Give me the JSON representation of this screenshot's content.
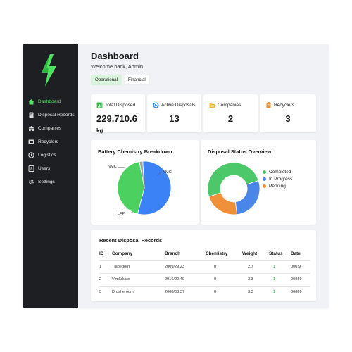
{
  "sidebar": {
    "items": [
      {
        "label": "Dashboard",
        "icon": "home-icon",
        "active": true
      },
      {
        "label": "Disposal Records",
        "icon": "document-icon"
      },
      {
        "label": "Companies",
        "icon": "building-icon"
      },
      {
        "label": "Recyclers",
        "icon": "recycle-icon"
      },
      {
        "label": "Logistics",
        "icon": "truck-icon"
      },
      {
        "label": "Users",
        "icon": "users-icon"
      },
      {
        "label": "Settings",
        "icon": "gear-icon"
      }
    ]
  },
  "header": {
    "title": "Dashboard",
    "subtitle": "Welcome back, Admin",
    "tabs": [
      {
        "label": "Operational",
        "active": true
      },
      {
        "label": "Financial"
      }
    ]
  },
  "stats": [
    {
      "label": "Total Disposed",
      "value": "229,710.6",
      "unit": "kg",
      "icon": "chart-icon",
      "icon_color": "#3fbf53"
    },
    {
      "label": "Active Disposals",
      "value": "13",
      "icon": "gauge-icon",
      "icon_color": "#3b82f6"
    },
    {
      "label": "Companies",
      "value": "2",
      "icon": "folder-icon",
      "icon_color": "#f5b82e"
    },
    {
      "label": "Recyclers",
      "value": "3",
      "icon": "clipboard-icon",
      "icon_color": "#f28c28"
    }
  ],
  "chemistry_chart": {
    "title": "Battery Chemistry Breakdown",
    "chart_data": {
      "type": "pie",
      "categories": [
        "NMC",
        "LFP",
        "NMC"
      ],
      "values": [
        55,
        43,
        2
      ],
      "colors": [
        "#3b82f6",
        "#4cd060",
        "#9aa0a6"
      ]
    },
    "labels": [
      "NMC",
      "NMC",
      "LFP"
    ]
  },
  "status_chart": {
    "title": "Disposal Status Overview",
    "chart_data": {
      "type": "pie",
      "categories": [
        "Completed",
        "In Progress",
        "Pending"
      ],
      "values": [
        50,
        28,
        22
      ],
      "colors": [
        "#4cc76a",
        "#4a86e8",
        "#f0913a"
      ]
    },
    "legend": [
      "Completed",
      "In Progress",
      "Pending"
    ]
  },
  "records": {
    "title": "Recent Disposal Records",
    "columns": [
      "ID",
      "Company",
      "Branch",
      "Chemistry",
      "Weight",
      "Status",
      "Date"
    ],
    "rows": [
      [
        "1",
        "Tlabedorn",
        "2009/29.23",
        "0",
        "2.7",
        "1",
        "000.9"
      ],
      [
        "2",
        "Vimßrkate",
        "2016/20.40",
        "0",
        "3.3",
        "1",
        "00889"
      ],
      [
        "3",
        "Drusheroom",
        "2008/03.37",
        "0",
        "3.3",
        "1",
        "00889"
      ]
    ]
  }
}
